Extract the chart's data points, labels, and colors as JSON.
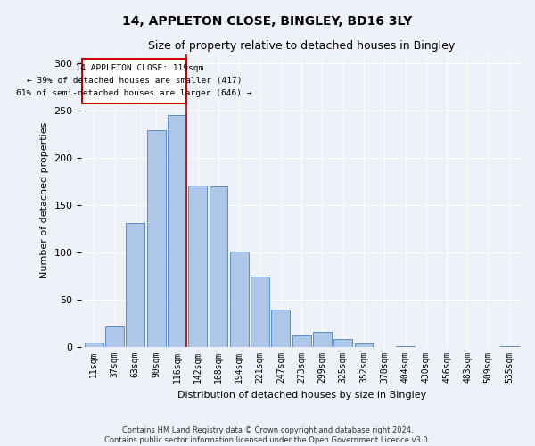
{
  "title": "14, APPLETON CLOSE, BINGLEY, BD16 3LY",
  "subtitle": "Size of property relative to detached houses in Bingley",
  "xlabel": "Distribution of detached houses by size in Bingley",
  "ylabel": "Number of detached properties",
  "footer_line1": "Contains HM Land Registry data © Crown copyright and database right 2024.",
  "footer_line2": "Contains public sector information licensed under the Open Government Licence v3.0.",
  "bar_labels": [
    "11sqm",
    "37sqm",
    "63sqm",
    "90sqm",
    "116sqm",
    "142sqm",
    "168sqm",
    "194sqm",
    "221sqm",
    "247sqm",
    "273sqm",
    "299sqm",
    "325sqm",
    "352sqm",
    "378sqm",
    "404sqm",
    "430sqm",
    "456sqm",
    "483sqm",
    "509sqm",
    "535sqm"
  ],
  "bar_values": [
    5,
    22,
    131,
    229,
    245,
    171,
    170,
    101,
    75,
    40,
    12,
    16,
    9,
    4,
    0,
    1,
    0,
    0,
    0,
    0,
    1
  ],
  "bar_color": "#aec6e8",
  "bar_edge_color": "#5b8fc9",
  "property_label": "14 APPLETON CLOSE: 119sqm",
  "pct_smaller": 39,
  "n_smaller": 417,
  "pct_larger": 61,
  "n_larger": 646,
  "vline_color": "#cc0000",
  "annotation_box_color": "#cc0000",
  "ylim": [
    0,
    310
  ],
  "background_color": "#eef2f8",
  "grid_color": "#ffffff"
}
